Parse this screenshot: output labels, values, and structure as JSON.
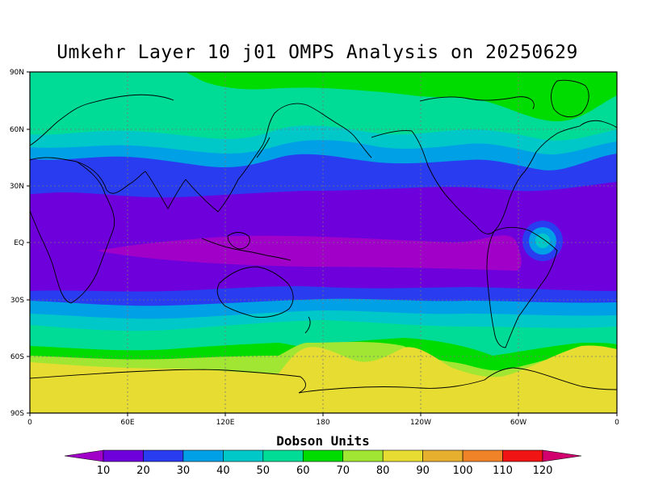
{
  "title": "Umkehr Layer 10 j01 OMPS Analysis on 20250629",
  "lat_labels": [
    "90N",
    "60N",
    "30N",
    "EQ",
    "30S",
    "60S",
    "90S"
  ],
  "lon_labels": [
    "0",
    "60E",
    "120E",
    "180",
    "120W",
    "60W",
    "0"
  ],
  "colorbar": {
    "title": "Dobson Units",
    "levels": [
      "10",
      "20",
      "30",
      "40",
      "50",
      "60",
      "70",
      "80",
      "90",
      "100",
      "110",
      "120"
    ],
    "colors": [
      "#a000c8",
      "#6e00dc",
      "#2a3cf0",
      "#00a0e6",
      "#00c8c8",
      "#00dc96",
      "#00dc00",
      "#a0e632",
      "#e6dc32",
      "#e6af2d",
      "#f08228",
      "#f01414",
      "#d2006e"
    ]
  },
  "field_colors": {
    "lt10": "#a000c8",
    "b10_20": "#6e00dc",
    "b20_30": "#2a3cf0",
    "b30_40": "#00a0e6",
    "b40_50": "#00c8c8",
    "b50_60": "#00dc96",
    "b60_70": "#00dc00",
    "b70_80": "#a0e632",
    "b80_90": "#e6dc32"
  },
  "projection": "cylindrical equidistant, 0 to 360 longitude, 90S to 90N"
}
